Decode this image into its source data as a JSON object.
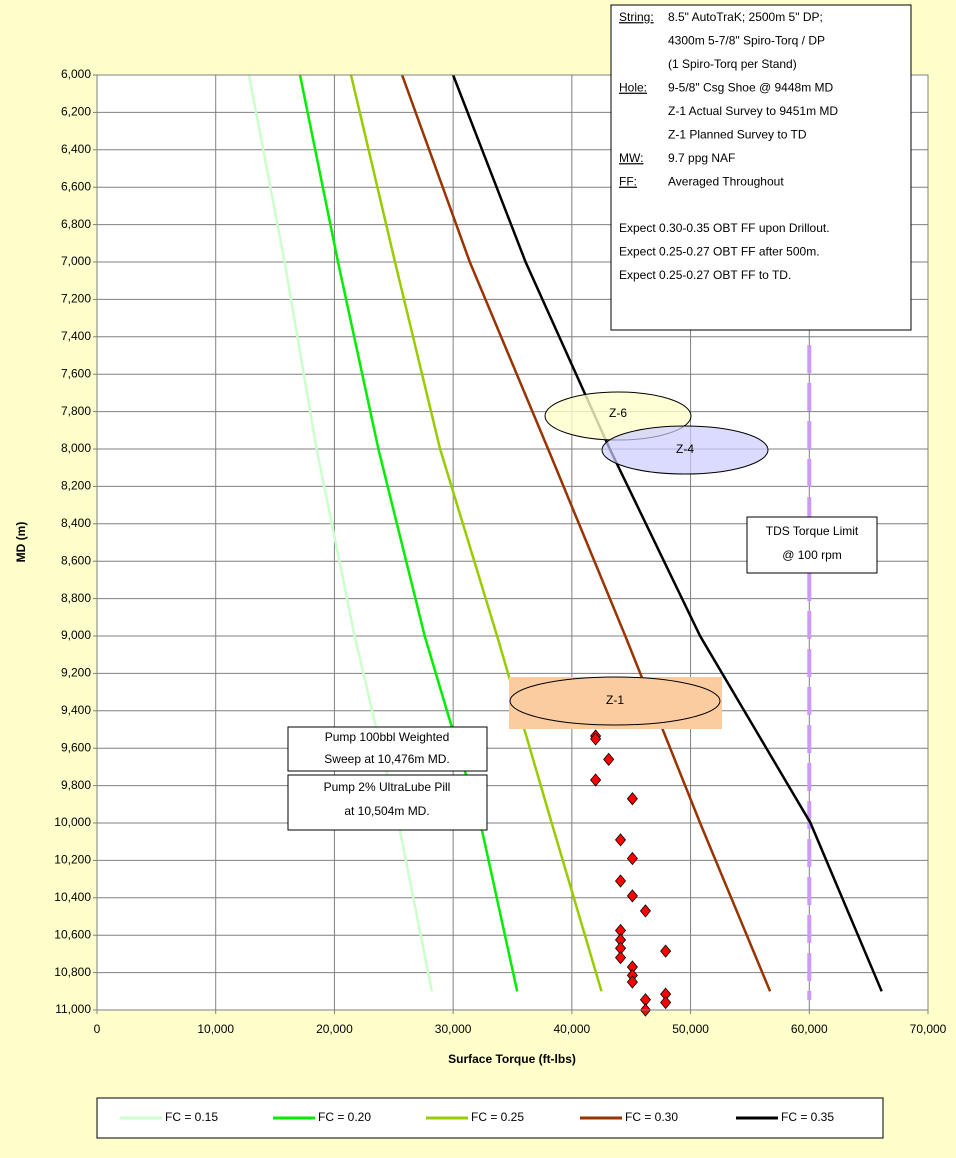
{
  "chart_data": {
    "type": "line",
    "xlabel": "Surface Torque (ft-lbs)",
    "ylabel": "MD (m)",
    "xlim": [
      0,
      70000
    ],
    "xticks": [
      0,
      {
        "value": 10000,
        "label": "10,000"
      },
      {
        "value": 20000,
        "label": "20,000"
      },
      {
        "value": 30000,
        "label": "30,000"
      },
      {
        "value": 40000,
        "label": "40,000"
      },
      {
        "value": 50000,
        "label": "50,000"
      },
      {
        "value": 60000,
        "label": "60,000"
      },
      {
        "value": 70000,
        "label": "70,000"
      }
    ],
    "ylim": [
      6000,
      11000
    ],
    "y_inverted": true,
    "yticks": [
      {
        "value": 6000,
        "label": "6,000"
      },
      {
        "value": 6200,
        "label": "6,200"
      },
      {
        "value": 6400,
        "label": "6,400"
      },
      {
        "value": 6600,
        "label": "6,600"
      },
      {
        "value": 6800,
        "label": "6,800"
      },
      {
        "value": 7000,
        "label": "7,000"
      },
      {
        "value": 7200,
        "label": "7,200"
      },
      {
        "value": 7400,
        "label": "7,400"
      },
      {
        "value": 7600,
        "label": "7,600"
      },
      {
        "value": 7800,
        "label": "7,800"
      },
      {
        "value": 8000,
        "label": "8,000"
      },
      {
        "value": 8200,
        "label": "8,200"
      },
      {
        "value": 8400,
        "label": "8,400"
      },
      {
        "value": 8600,
        "label": "8,600"
      },
      {
        "value": 8800,
        "label": "8,800"
      },
      {
        "value": 9000,
        "label": "9,000"
      },
      {
        "value": 9200,
        "label": "9,200"
      },
      {
        "value": 9400,
        "label": "9,400"
      },
      {
        "value": 9600,
        "label": "9,600"
      },
      {
        "value": 9800,
        "label": "9,800"
      },
      {
        "value": 10000,
        "label": "10,000"
      },
      {
        "value": 10200,
        "label": "10,200"
      },
      {
        "value": 10400,
        "label": "10,400"
      },
      {
        "value": 10600,
        "label": "10,600"
      },
      {
        "value": 10800,
        "label": "10,800"
      },
      {
        "value": 11000,
        "label": "11,000"
      }
    ],
    "grid": true,
    "depths": [
      6000,
      7000,
      8000,
      9000,
      10000,
      10900
    ],
    "series": [
      {
        "name": "FC = 0.15",
        "color": "#ccffcc",
        "x": [
          12800,
          15800,
          18500,
          21700,
          25400,
          28200
        ]
      },
      {
        "name": "FC = 0.20",
        "color": "#00ee00",
        "x": [
          17100,
          20300,
          23700,
          27600,
          32300,
          35400
        ]
      },
      {
        "name": "FC = 0.25",
        "color": "#99cc00",
        "x": [
          21400,
          25100,
          28900,
          33700,
          38300,
          42500
        ]
      },
      {
        "name": "FC = 0.30",
        "color": "#993300",
        "x": [
          25700,
          31400,
          38000,
          44500,
          50800,
          56700
        ]
      },
      {
        "name": "FC = 0.35",
        "color": "#000000",
        "x": [
          30000,
          36100,
          43200,
          50800,
          60100,
          66100
        ]
      }
    ],
    "points": {
      "color": "#ff0000",
      "x": [
        42000,
        42000,
        43100,
        42000,
        45100,
        44100,
        45100,
        44100,
        45100,
        46200,
        44100,
        44100,
        44100,
        44100,
        45100,
        45100,
        45100,
        47900,
        47900,
        46200,
        47900,
        46200
      ],
      "y": [
        9535,
        9550,
        9660,
        9770,
        9870,
        10090,
        10190,
        10310,
        10390,
        10470,
        10575,
        10625,
        10670,
        10720,
        10770,
        10815,
        10850,
        10685,
        10915,
        10945,
        10960,
        11000
      ]
    },
    "limit_line": {
      "x": 60000,
      "color": "#cc99ff"
    },
    "notes": [
      {
        "label": "String:",
        "lines": [
          "8.5\" AutoTraK; 2500m 5\" DP;",
          "4300m 5-7/8\" Spiro-Torq / DP",
          "(1 Spiro-Torq per Stand)"
        ]
      },
      {
        "label": "Hole:",
        "lines": [
          "9-5/8\" Csg Shoe @ 9448m MD",
          "Z-1 Actual Survey to 9451m MD",
          "Z-1 Planned Survey to TD"
        ]
      },
      {
        "label": "MW:",
        "lines": [
          "9.7 ppg NAF"
        ]
      },
      {
        "label": "FF:",
        "lines": [
          "Averaged Throughout"
        ]
      }
    ],
    "expectations": [
      "Expect 0.30-0.35 OBT FF upon Drillout.",
      "Expect 0.25-0.27 OBT FF after 500m.",
      "Expect 0.25-0.27 OBT FF to TD."
    ],
    "zones": [
      "Z-6",
      "Z-4",
      "Z-1"
    ],
    "limit_note": [
      "TDS Torque Limit",
      "@ 100 rpm"
    ],
    "pump_notes": [
      [
        "Pump 100bbl Weighted",
        "Sweep at 10,476m MD."
      ],
      [
        "Pump 2% UltraLube Pill",
        "at 10,504m MD."
      ]
    ]
  }
}
